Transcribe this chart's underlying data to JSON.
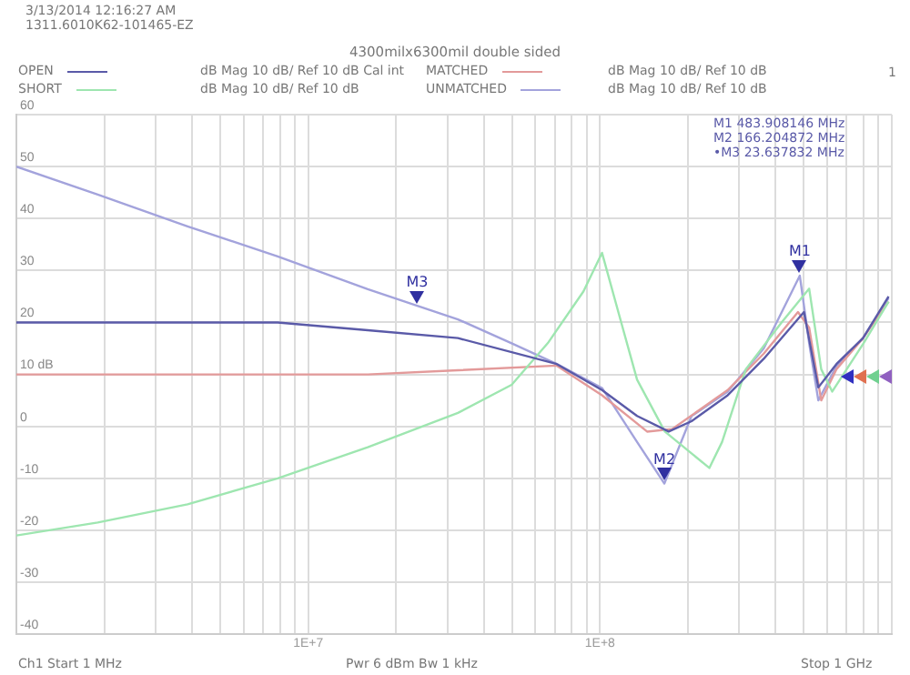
{
  "chart_data": {
    "type": "line",
    "title": "4300milx6300mil double sided",
    "legend": "top",
    "grid": true,
    "marker": "none",
    "line_style": "solid",
    "xlim": [
      1000000,
      1000000000
    ],
    "xticks": [
      {
        "value": 1000000,
        "label": null
      },
      {
        "value": 2000000,
        "label": null
      },
      {
        "value": 3000000,
        "label": null
      },
      {
        "value": 4000000,
        "label": null
      },
      {
        "value": 5000000,
        "label": null
      },
      {
        "value": 6000000,
        "label": null
      },
      {
        "value": 7000000,
        "label": null
      },
      {
        "value": 8000000,
        "label": null
      },
      {
        "value": 9000000,
        "label": null
      },
      {
        "value": 10000000,
        "label": "1E+7"
      },
      {
        "value": 20000000,
        "label": null
      },
      {
        "value": 30000000,
        "label": null
      },
      {
        "value": 40000000,
        "label": null
      },
      {
        "value": 50000000,
        "label": null
      },
      {
        "value": 60000000,
        "label": null
      },
      {
        "value": 70000000,
        "label": null
      },
      {
        "value": 80000000,
        "label": null
      },
      {
        "value": 90000000,
        "label": null
      },
      {
        "value": 100000000,
        "label": "1E+8"
      },
      {
        "value": 200000000,
        "label": null
      },
      {
        "value": 300000000,
        "label": null
      },
      {
        "value": 400000000,
        "label": null
      },
      {
        "value": 500000000,
        "label": null
      },
      {
        "value": 600000000,
        "label": null
      },
      {
        "value": 700000000,
        "label": null
      },
      {
        "value": 800000000,
        "label": null
      },
      {
        "value": 900000000,
        "label": null
      },
      {
        "value": 1000000000,
        "label": null
      }
    ],
    "log": "x",
    "ylim": [
      -40,
      60
    ],
    "yticks": [
      -40,
      -30,
      -20,
      -10,
      0,
      {
        "value": 10,
        "label": "10 dB"
      },
      20,
      30,
      40,
      50,
      60
    ],
    "series": [
      {
        "name": "OPEN",
        "color": "#5a5aa8",
        "x": [
          1000000,
          7860000,
          16000000,
          32600000,
          71100000,
          101600000,
          134000000,
          172000000,
          206000000,
          274000000,
          364000000,
          500000000,
          560000000,
          646000000,
          797000000,
          975000000
        ],
        "values": [
          20,
          20,
          18.5,
          17,
          12,
          7,
          2,
          -1,
          1,
          6,
          13,
          22,
          7.5,
          12,
          17,
          25
        ]
      },
      {
        "name": "SHORT",
        "color": "#9ee6b0",
        "x": [
          1000000,
          1900000,
          3860000,
          7860000,
          16000000,
          32600000,
          49800000,
          66200000,
          87800000,
          101600000,
          116900000,
          134000000,
          166800000,
          237000000,
          262000000,
          316000000,
          419000000,
          521000000,
          573000000,
          625000000,
          800000000,
          975000000
        ],
        "values": [
          -21,
          -18.5,
          -15,
          -10,
          -4,
          2.6,
          8,
          16,
          26,
          33.4,
          21,
          9,
          -1,
          -8,
          -3,
          11,
          20,
          26.5,
          11,
          6.7,
          16,
          24
        ]
      },
      {
        "name": "MATCHED",
        "color": "#e39a9a",
        "x": [
          1000000,
          16000000,
          32600000,
          71100000,
          101600000,
          145000000,
          177000000,
          274000000,
          364000000,
          477000000,
          521000000,
          573000000,
          646000000,
          797000000,
          975000000
        ],
        "values": [
          10,
          10,
          10.8,
          11.7,
          6,
          -1,
          -0.5,
          7,
          14,
          22,
          19,
          5,
          11,
          17,
          24
        ]
      },
      {
        "name": "UNMATCHED",
        "color": "#a3a3dc",
        "x": [
          1000000,
          1900000,
          3860000,
          7860000,
          16000000,
          32600000,
          49800000,
          71100000,
          101600000,
          134000000,
          166204872,
          206000000,
          274000000,
          364000000,
          483908146,
          521000000,
          560000000,
          646000000,
          797000000,
          975000000
        ],
        "values": [
          50,
          44.6,
          38.5,
          32.7,
          26.4,
          20.6,
          16,
          12,
          7.4,
          -3,
          -11,
          2,
          6.7,
          15,
          29,
          16,
          5,
          11.6,
          17,
          24.7
        ]
      }
    ],
    "annotations": [
      "3/13/2014 12:16:27 AM",
      "1311.6010K62-101465-EZ",
      "1",
      "dB Mag 10 dB/ Ref 10 dB Cal int",
      "dB Mag 10 dB/ Ref 10 dB",
      "dB Mag 10 dB/ Ref 10 dB",
      "dB Mag 10 dB/ Ref 10 dB",
      "M1 483.908146 MHz",
      "M2 166.204872 MHz",
      "•M3 23.637832 MHz",
      "Ch1 Start 1 MHz",
      "Pwr 6 dBm Bw 1 kHz",
      "Stop 1 GHz",
      {
        "text": "M1",
        "x": 483908146,
        "y": 29
      },
      {
        "text": "M2",
        "x": 166204872,
        "y": -11
      },
      {
        "text": "M3",
        "x": 23637832,
        "y": 23
      }
    ]
  }
}
